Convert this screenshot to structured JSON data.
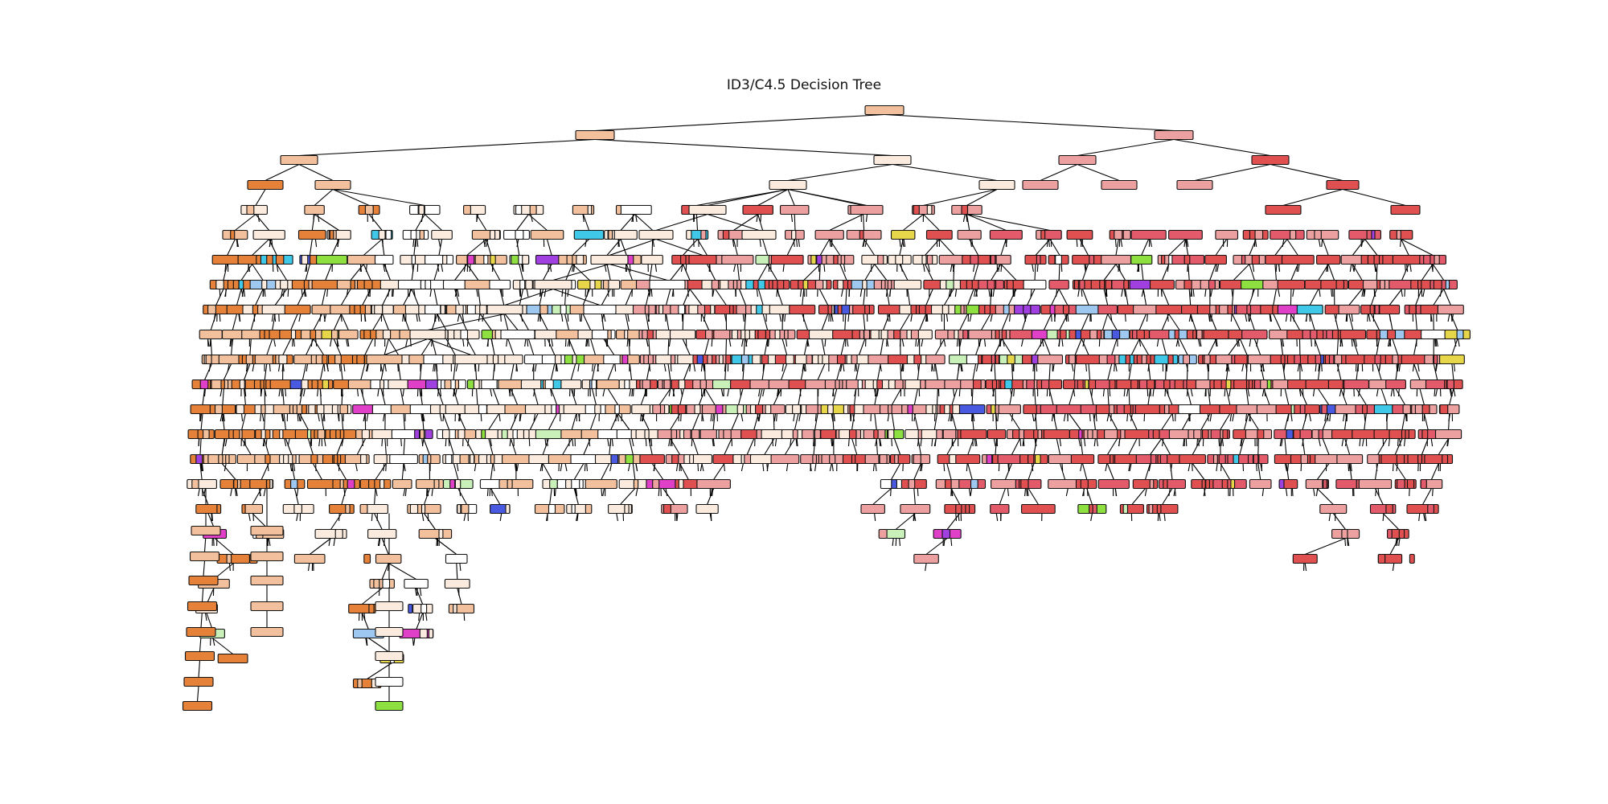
{
  "figure": {
    "title": "ID3/C4.5 Decision Tree"
  },
  "diagram": {
    "type": "decision-tree",
    "palette": {
      "orange": "#e58139",
      "light_orange": "#f2c09c",
      "peach": "#fbeade",
      "salmon": "#eca0a0",
      "red": "#e05050",
      "pink_red": "#e35a6b",
      "white": "#ffffff",
      "green": "#8ee040",
      "yellow": "#e8d64a",
      "cyan": "#3fc8e8",
      "blue": "#4a5ae0",
      "purple": "#a040e0",
      "magenta": "#e040c8",
      "light_blue": "#9ec8f0",
      "light_green": "#c8f0b8"
    }
  }
}
